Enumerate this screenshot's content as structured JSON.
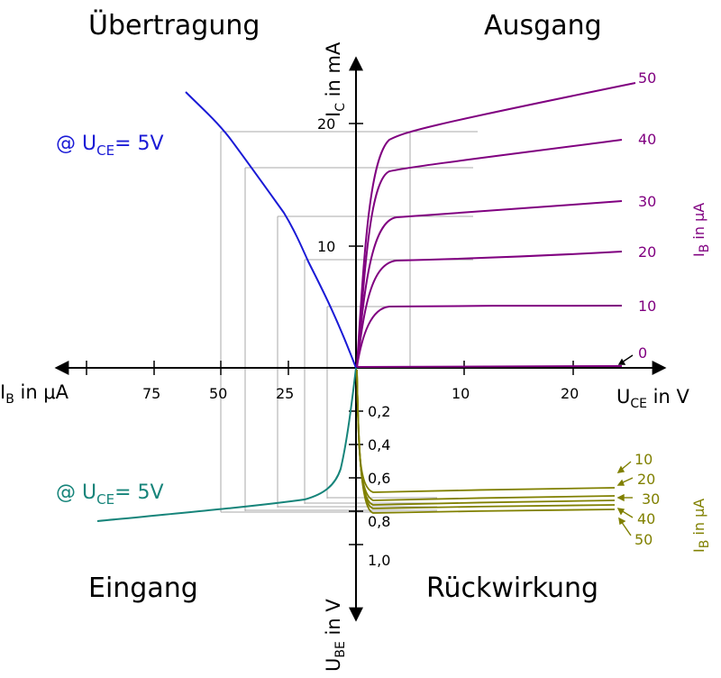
{
  "quadrants": {
    "transfer": "Übertragung",
    "output": "Ausgang",
    "input": "Eingang",
    "feedback": "Rückwirkung"
  },
  "axes": {
    "ic": {
      "main": "I",
      "sub": "C",
      "unit": " in mA"
    },
    "ib": {
      "main": "I",
      "sub": "B",
      "unit": " in μA"
    },
    "uce": {
      "main": "U",
      "sub": "CE",
      "unit": " in V"
    },
    "ube": {
      "main": "U",
      "sub": "BE",
      "unit": " in V"
    }
  },
  "ticks": {
    "ic": [
      "20",
      "10"
    ],
    "ib_left": [
      "75",
      "50",
      "25"
    ],
    "uce": [
      "10",
      "20"
    ],
    "ube": [
      "0,2",
      "0,4",
      "0,6",
      "0,8",
      "1,0"
    ]
  },
  "conditions": {
    "transfer": {
      "prefix": "@ U",
      "sub": "CE",
      "suffix": "= 5V"
    },
    "input": {
      "prefix": "@ U",
      "sub": "CE",
      "suffix": "= 5V"
    }
  },
  "parameter_labels": {
    "output": [
      "50",
      "40",
      "30",
      "20",
      "10",
      "0"
    ],
    "feedback": [
      "10",
      "20",
      "30",
      "40",
      "50"
    ],
    "output_axis": {
      "main": "I",
      "sub": "B",
      "unit": " in μA"
    },
    "feedback_axis": {
      "main": "I",
      "sub": "B",
      "unit": " in μA"
    }
  },
  "colors": {
    "transfer": "#1a1ad6",
    "output": "#800080",
    "input": "#16847a",
    "feedback": "#808000",
    "grid": "#a8a8a8",
    "axis": "#000000"
  }
}
